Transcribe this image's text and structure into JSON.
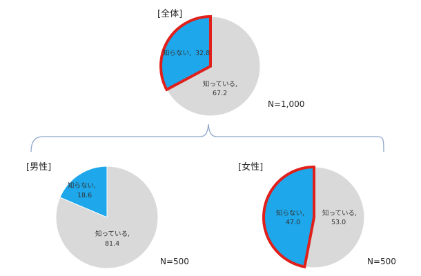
{
  "chart_data": [
    {
      "type": "pie",
      "title": "[全体]",
      "slices": [
        {
          "label": "知らない,",
          "value": 32.8,
          "value_text": "32.8",
          "color": "#1ea7ea",
          "highlighted": true
        },
        {
          "label": "知っている,",
          "value": 67.2,
          "value_text": "67.2",
          "color": "#d9d9d9",
          "highlighted": false
        }
      ],
      "sample_size": "N=1,000"
    },
    {
      "type": "pie",
      "title": "[男性]",
      "slices": [
        {
          "label": "知らない,",
          "value": 18.6,
          "value_text": "18.6",
          "color": "#1ea7ea",
          "highlighted": false
        },
        {
          "label": "知っている,",
          "value": 81.4,
          "value_text": "81.4",
          "color": "#d9d9d9",
          "highlighted": false
        }
      ],
      "sample_size": "N=500"
    },
    {
      "type": "pie",
      "title": "[女性]",
      "slices": [
        {
          "label": "知らない,",
          "value": 47.0,
          "value_text": "47.0",
          "color": "#1ea7ea",
          "highlighted": true
        },
        {
          "label": "知っている,",
          "value": 53.0,
          "value_text": "53.0",
          "color": "#d9d9d9",
          "highlighted": false
        }
      ],
      "sample_size": "N=500"
    }
  ],
  "colors": {
    "highlight_border": "#e0201b",
    "connector": "#8ea6c8"
  }
}
